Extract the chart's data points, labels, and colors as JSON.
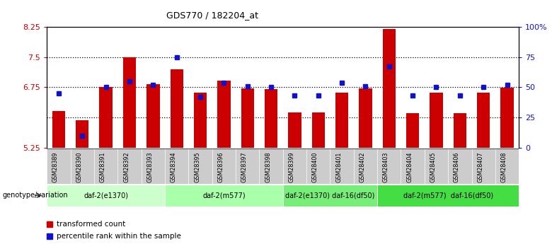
{
  "title": "GDS770 / 182204_at",
  "samples": [
    "GSM28389",
    "GSM28390",
    "GSM28391",
    "GSM28392",
    "GSM28393",
    "GSM28394",
    "GSM28395",
    "GSM28396",
    "GSM28397",
    "GSM28398",
    "GSM28399",
    "GSM28400",
    "GSM28401",
    "GSM28402",
    "GSM28403",
    "GSM28404",
    "GSM28405",
    "GSM28406",
    "GSM28407",
    "GSM28408"
  ],
  "bar_values": [
    6.15,
    5.93,
    6.75,
    7.5,
    6.82,
    7.2,
    6.62,
    6.92,
    6.72,
    6.7,
    6.12,
    6.12,
    6.62,
    6.72,
    8.2,
    6.1,
    6.62,
    6.1,
    6.62,
    6.73
  ],
  "dot_pct": [
    45,
    10,
    50,
    55,
    52,
    75,
    42,
    54,
    51,
    50,
    43,
    43,
    54,
    51,
    67,
    43,
    50,
    43,
    50,
    52
  ],
  "ylim_left": [
    5.25,
    8.25
  ],
  "ylim_right": [
    0,
    100
  ],
  "yticks_left": [
    5.25,
    6.75,
    7.5,
    8.25
  ],
  "ytick_labels_left": [
    "5.25",
    "6.75",
    "7.5",
    "8.25"
  ],
  "yticks_right": [
    0,
    25,
    50,
    75,
    100
  ],
  "ytick_labels_right": [
    "0",
    "25",
    "50",
    "75",
    "100%"
  ],
  "hlines": [
    6.0,
    6.75,
    7.5
  ],
  "bar_color": "#cc0000",
  "dot_color": "#1111cc",
  "bar_bottom": 5.25,
  "groups": [
    {
      "label": "daf-2(e1370)",
      "start": 0,
      "end": 4,
      "color": "#ccffcc"
    },
    {
      "label": "daf-2(m577)",
      "start": 5,
      "end": 9,
      "color": "#aaffaa"
    },
    {
      "label": "daf-2(e1370) daf-16(df50)",
      "start": 10,
      "end": 13,
      "color": "#77ee77"
    },
    {
      "label": "daf-2(m577)  daf-16(df50)",
      "start": 14,
      "end": 19,
      "color": "#44dd44"
    }
  ],
  "xlabel": "genotype/variation",
  "tick_color_left": "#cc0000",
  "tick_color_right": "#1111cc",
  "sample_bg_color": "#cccccc",
  "title_fontsize": 9
}
